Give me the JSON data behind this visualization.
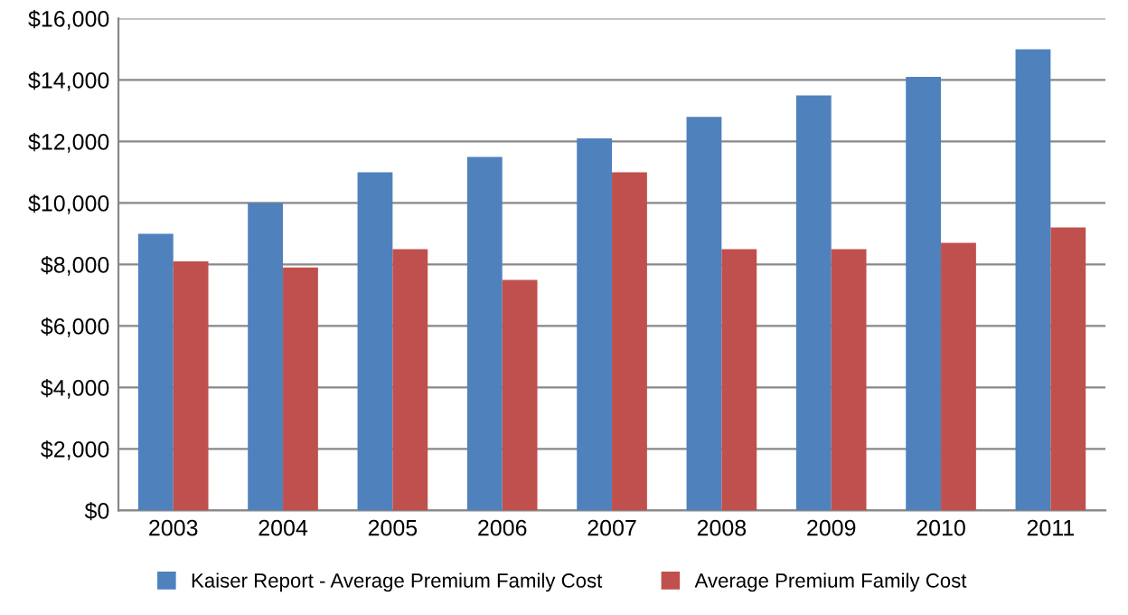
{
  "chart_data": {
    "type": "bar",
    "categories": [
      "2003",
      "2004",
      "2005",
      "2006",
      "2007",
      "2008",
      "2009",
      "2010",
      "2011"
    ],
    "series": [
      {
        "name": "Kaiser Report - Average Premium Family Cost",
        "color": "#4f81bd",
        "values": [
          9000,
          10000,
          11000,
          11500,
          12100,
          12800,
          13500,
          14100,
          15000
        ]
      },
      {
        "name": "Average Premium Family Cost",
        "color": "#c0504d",
        "values": [
          8100,
          7900,
          8500,
          7500,
          11000,
          8500,
          8500,
          8700,
          9200
        ]
      }
    ],
    "ylim": [
      0,
      16000
    ],
    "yticks": [
      {
        "value": 0,
        "label": "$0"
      },
      {
        "value": 2000,
        "label": "$2,000"
      },
      {
        "value": 4000,
        "label": "$4,000"
      },
      {
        "value": 6000,
        "label": "$6,000"
      },
      {
        "value": 8000,
        "label": "$8,000"
      },
      {
        "value": 10000,
        "label": "$10,000"
      },
      {
        "value": 12000,
        "label": "$12,000"
      },
      {
        "value": 14000,
        "label": "$14,000"
      },
      {
        "value": 16000,
        "label": "$16,000"
      }
    ],
    "grid": "y",
    "legend": "bottom"
  }
}
